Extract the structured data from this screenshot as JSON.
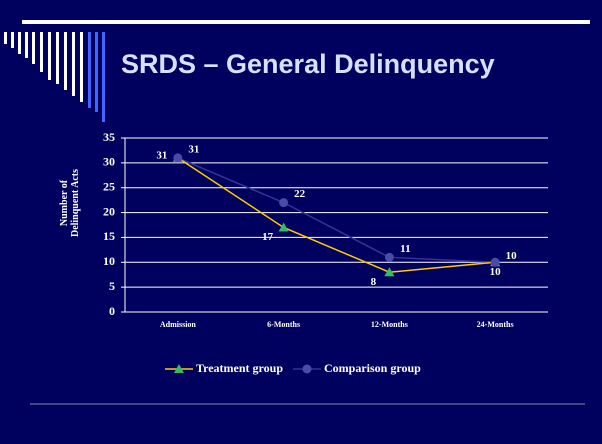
{
  "chart_data": {
    "type": "line",
    "title": "SRDS – General Delinquency",
    "y_label": "Number of Delinquent Acts",
    "categories": [
      "Admission",
      "6-Months",
      "12-Months",
      "24-Months"
    ],
    "series": [
      {
        "name": "Treatment group",
        "color": "#ffcc00",
        "marker_color": "#33bb66",
        "marker": "triangle",
        "values": [
          31,
          17,
          8,
          10
        ]
      },
      {
        "name": "Comparison group",
        "color": "#333399",
        "marker_color": "#4a4aa8",
        "marker": "circle",
        "values": [
          31,
          22,
          11,
          10
        ]
      }
    ],
    "ylim": [
      0,
      35
    ],
    "yticks": [
      0,
      5,
      10,
      15,
      20,
      25,
      30,
      35
    ],
    "grid": true,
    "legend": "bottom"
  }
}
